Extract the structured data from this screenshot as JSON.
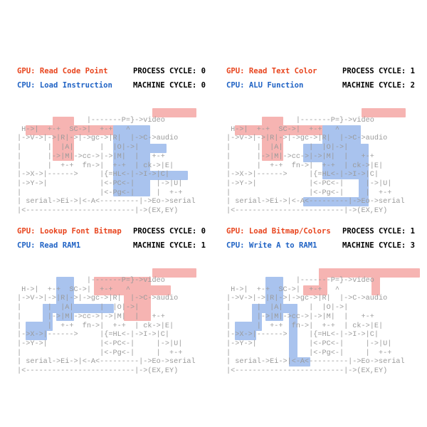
{
  "panels": [
    {
      "gpu": "GPU: Read Code Point",
      "cpu": "CPU: Load Instruction",
      "process_cycle": "PROCESS CYCLE: 0",
      "machine_cycle": "MACHINE CYCLE: 0"
    },
    {
      "gpu": "GPU: Read Text Color",
      "cpu": "CPU: ALU Function",
      "process_cycle": "PROCESS CYCLE: 1",
      "machine_cycle": "MACHINE CYCLE: 2"
    },
    {
      "gpu": "GPU: Lookup Font Bitmap",
      "cpu": "CPU: Read RAM1",
      "process_cycle": "PROCESS CYCLE: 0",
      "machine_cycle": "MACHINE CYCLE: 1"
    },
    {
      "gpu": "GPU: Load Bitmap/Colors",
      "cpu": "CPU: Write A to RAM1",
      "process_cycle": "PROCESS CYCLE: 1",
      "machine_cycle": "MACHINE CYCLE: 3"
    }
  ],
  "diagram_lines": [
    "                |-------P=}->video",
    " H->|  +-+  SC->|  +-+   ^",
    "|->V->|->|R|->|->gc->|R|  |->C->audio",
    "|      |  |A|      |  |O|->|",
    "|      |->|M|->cc->|->|M|  |   +-+",
    "|      |  +-+  fn->|  +-+  | ck->|E|",
    "|->X->|------>     |{=HL<-|->I->|C|",
    "|->Y->|            |<-PC<-|     |->|U|",
    "|                  |<-Pg<-|     |  +-+",
    "| serial->Ei->|<-A<---------|->Eo->serial",
    "|<-------------------------|->(EX,EY)"
  ],
  "colors": {
    "gpu": "#e8441d",
    "cpu": "#1f62c4",
    "gpu_highlight": "#f6b4b2",
    "cpu_highlight": "#a9c3ee"
  }
}
